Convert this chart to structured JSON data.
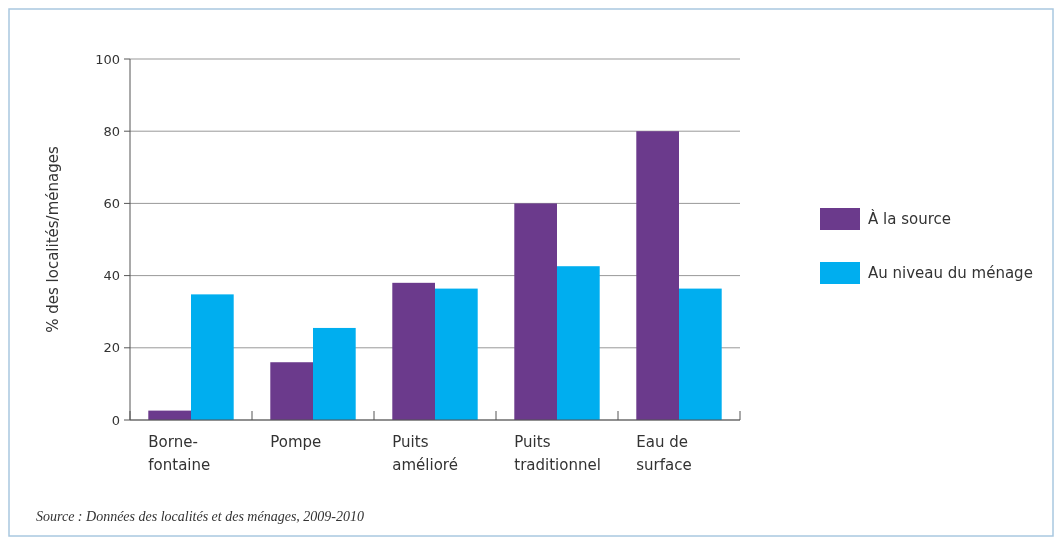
{
  "chart_data": {
    "type": "bar",
    "ylabel": "% des localités/ménages",
    "categories": [
      "Borne-\nfontaine",
      "Pompe",
      "Puits\namélioré",
      "Puits\ntraditionnel",
      "Eau de\nsurface"
    ],
    "series": [
      {
        "name": "À la source",
        "color": "#6b3a8c",
        "values": [
          2.6,
          16,
          38,
          60,
          80
        ]
      },
      {
        "name": "Au niveau du ménage",
        "color": "#00aeef",
        "values": [
          34.8,
          25.5,
          36.4,
          42.6,
          36.4
        ]
      }
    ],
    "ylim": [
      0,
      100
    ],
    "yticks": [
      0,
      20,
      40,
      60,
      80,
      100
    ],
    "grid": "y",
    "legend": "right",
    "annotations": [
      "Source : Données des localités et des ménages, 2009-2010"
    ]
  }
}
